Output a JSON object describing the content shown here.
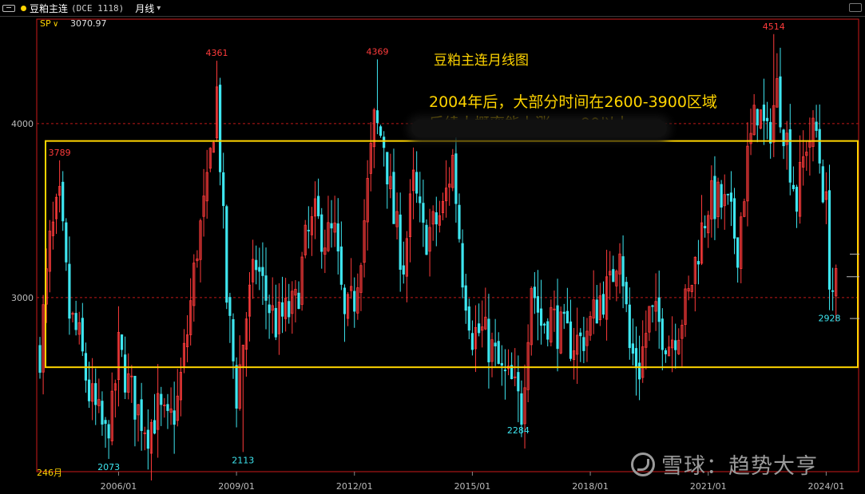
{
  "topbar": {
    "title": "豆粕主连",
    "code": "(DCE 1118)",
    "period": "月线",
    "period_caret": "▾"
  },
  "colors": {
    "up": "#ff3b3b",
    "down": "#3ee6f0",
    "box": "#ffd400",
    "text_title": "#ffd400",
    "dashed": "#c01818"
  },
  "indicator": {
    "label": "SP",
    "caret": "∨",
    "value": "3070.97"
  },
  "annotations": {
    "title": "豆粕主连月线图",
    "line1": "2004年后，大部分时间在2600-3900区域",
    "line2": "后续大概率能上涨……90以上"
  },
  "bar_count_label": "246月",
  "watermark": "雪球：趋势大亨",
  "chart_data": {
    "type": "candlestick",
    "ylim": [
      2000,
      4600
    ],
    "y_ticks": [
      3000,
      4000
    ],
    "x_ticks": [
      "2006/01",
      "2009/01",
      "2012/01",
      "2015/01",
      "2018/01",
      "2021/01",
      "2024/01"
    ],
    "reference_lines": [
      3000,
      4000
    ],
    "range_box": [
      2600,
      3900
    ],
    "price_labels": [
      {
        "text": "3789",
        "date": "2004-07",
        "value": 3789,
        "kind": "high"
      },
      {
        "text": "2073",
        "date": "2005-10",
        "value": 2073,
        "kind": "low"
      },
      {
        "text": "4361",
        "date": "2008-07",
        "value": 4361,
        "kind": "high"
      },
      {
        "text": "2113",
        "date": "2009-03",
        "value": 2113,
        "kind": "low"
      },
      {
        "text": "4369",
        "date": "2012-08",
        "value": 4369,
        "kind": "high"
      },
      {
        "text": "2284",
        "date": "2016-03",
        "value": 2284,
        "kind": "low"
      },
      {
        "text": "4514",
        "date": "2022-09",
        "value": 4514,
        "kind": "high"
      },
      {
        "text": "2928",
        "date": "2024-02",
        "value": 2928,
        "kind": "low"
      }
    ],
    "close_path": [
      [
        "2004-01",
        2700
      ],
      [
        "2004-04",
        3300
      ],
      [
        "2004-07",
        3550
      ],
      [
        "2004-10",
        2900
      ],
      [
        "2005-01",
        2750
      ],
      [
        "2005-04",
        2450
      ],
      [
        "2005-07",
        2300
      ],
      [
        "2005-10",
        2150
      ],
      [
        "2006-01",
        2700
      ],
      [
        "2006-04",
        2500
      ],
      [
        "2006-07",
        2350
      ],
      [
        "2006-10",
        2250
      ],
      [
        "2007-01",
        2350
      ],
      [
        "2007-04",
        2250
      ],
      [
        "2007-07",
        2400
      ],
      [
        "2007-10",
        2800
      ],
      [
        "2008-01",
        3300
      ],
      [
        "2008-04",
        3600
      ],
      [
        "2008-07",
        4200
      ],
      [
        "2008-10",
        3000
      ],
      [
        "2009-01",
        2450
      ],
      [
        "2009-04",
        2900
      ],
      [
        "2009-07",
        3200
      ],
      [
        "2009-10",
        3000
      ],
      [
        "2010-01",
        2850
      ],
      [
        "2010-04",
        2900
      ],
      [
        "2010-07",
        2950
      ],
      [
        "2010-10",
        3300
      ],
      [
        "2011-01",
        3450
      ],
      [
        "2011-04",
        3350
      ],
      [
        "2011-07",
        3350
      ],
      [
        "2011-10",
        2850
      ],
      [
        "2012-01",
        3000
      ],
      [
        "2012-04",
        3450
      ],
      [
        "2012-07",
        4000
      ],
      [
        "2012-10",
        3900
      ],
      [
        "2013-01",
        3450
      ],
      [
        "2013-04",
        3200
      ],
      [
        "2013-07",
        3650
      ],
      [
        "2013-10",
        3350
      ],
      [
        "2014-01",
        3400
      ],
      [
        "2014-04",
        3500
      ],
      [
        "2014-07",
        3800
      ],
      [
        "2014-10",
        3150
      ],
      [
        "2015-01",
        2800
      ],
      [
        "2015-04",
        2800
      ],
      [
        "2015-07",
        2700
      ],
      [
        "2015-10",
        2550
      ],
      [
        "2016-01",
        2500
      ],
      [
        "2016-04",
        2350
      ],
      [
        "2016-07",
        3100
      ],
      [
        "2016-10",
        2850
      ],
      [
        "2017-01",
        2900
      ],
      [
        "2017-04",
        2800
      ],
      [
        "2017-07",
        2750
      ],
      [
        "2017-10",
        2750
      ],
      [
        "2018-01",
        2850
      ],
      [
        "2018-04",
        3000
      ],
      [
        "2018-07",
        3050
      ],
      [
        "2018-10",
        3350
      ],
      [
        "2019-01",
        2700
      ],
      [
        "2019-04",
        2600
      ],
      [
        "2019-07",
        2900
      ],
      [
        "2019-10",
        2850
      ],
      [
        "2020-01",
        2750
      ],
      [
        "2020-04",
        2850
      ],
      [
        "2020-07",
        3000
      ],
      [
        "2020-10",
        3300
      ],
      [
        "2021-01",
        3550
      ],
      [
        "2021-04",
        3550
      ],
      [
        "2021-07",
        3500
      ],
      [
        "2021-10",
        3300
      ],
      [
        "2022-01",
        3800
      ],
      [
        "2022-04",
        4100
      ],
      [
        "2022-07",
        3900
      ],
      [
        "2022-10",
        4200
      ],
      [
        "2023-01",
        3900
      ],
      [
        "2023-04",
        3550
      ],
      [
        "2023-07",
        3900
      ],
      [
        "2023-10",
        3950
      ],
      [
        "2024-01",
        3500
      ],
      [
        "2024-02",
        3050
      ],
      [
        "2024-03",
        3050
      ]
    ]
  }
}
